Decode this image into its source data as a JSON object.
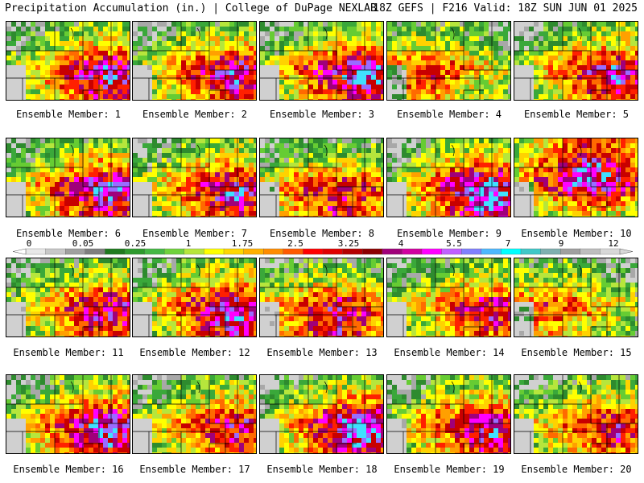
{
  "header": {
    "left": "Precipitation Accumulation (in.) | College of DuPage NEXLAB",
    "right": "18Z GEFS | F216 Valid: 18Z SUN JUN 01 2025"
  },
  "members": [
    {
      "label": "Ensemble Member: 1",
      "intensity": 0.62,
      "hotspot": "east"
    },
    {
      "label": "Ensemble Member: 2",
      "intensity": 0.58,
      "hotspot": "east"
    },
    {
      "label": "Ensemble Member: 3",
      "intensity": 0.66,
      "hotspot": "east"
    },
    {
      "label": "Ensemble Member: 4",
      "intensity": 0.42,
      "hotspot": "west"
    },
    {
      "label": "Ensemble Member: 5",
      "intensity": 0.6,
      "hotspot": "east"
    },
    {
      "label": "Ensemble Member: 6",
      "intensity": 0.64,
      "hotspot": "east"
    },
    {
      "label": "Ensemble Member: 7",
      "intensity": 0.58,
      "hotspot": "east"
    },
    {
      "label": "Ensemble Member: 8",
      "intensity": 0.52,
      "hotspot": "south"
    },
    {
      "label": "Ensemble Member: 9",
      "intensity": 0.72,
      "hotspot": "east"
    },
    {
      "label": "Ensemble Member: 10",
      "intensity": 0.66,
      "hotspot": "north"
    },
    {
      "label": "Ensemble Member: 11",
      "intensity": 0.56,
      "hotspot": "east"
    },
    {
      "label": "Ensemble Member: 12",
      "intensity": 0.64,
      "hotspot": "east"
    },
    {
      "label": "Ensemble Member: 13",
      "intensity": 0.58,
      "hotspot": "south"
    },
    {
      "label": "Ensemble Member: 14",
      "intensity": 0.5,
      "hotspot": "east"
    },
    {
      "label": "Ensemble Member: 15",
      "intensity": 0.38,
      "hotspot": "west"
    },
    {
      "label": "Ensemble Member: 16",
      "intensity": 0.66,
      "hotspot": "east"
    },
    {
      "label": "Ensemble Member: 17",
      "intensity": 0.52,
      "hotspot": "east"
    },
    {
      "label": "Ensemble Member: 18",
      "intensity": 0.7,
      "hotspot": "east"
    },
    {
      "label": "Ensemble Member: 19",
      "intensity": 0.6,
      "hotspot": "east"
    },
    {
      "label": "Ensemble Member: 20",
      "intensity": 0.5,
      "hotspot": "east"
    }
  ],
  "colorbar": {
    "labels": [
      "0",
      "0.05",
      "0.25",
      "1",
      "1.75",
      "2.5",
      "3.25",
      "4",
      "5.5",
      "7",
      "9",
      "12"
    ],
    "colors": [
      "#e8e8e8",
      "#c8c8c8",
      "#a0a0a0",
      "#7f7f7f",
      "#1f7a1f",
      "#2e9a2e",
      "#45b845",
      "#6fd23c",
      "#b6e63c",
      "#ffff00",
      "#ffd700",
      "#ffb000",
      "#ff8c00",
      "#ff5a00",
      "#ff0000",
      "#e00000",
      "#b40000",
      "#8c0000",
      "#a0007a",
      "#d000a0",
      "#ff00ff",
      "#c060ff",
      "#8080ff",
      "#4db8ff",
      "#00ffff",
      "#40c8c8",
      "#7fb0b0",
      "#a0a0a0",
      "#bebebe",
      "#d8d8d8"
    ]
  }
}
